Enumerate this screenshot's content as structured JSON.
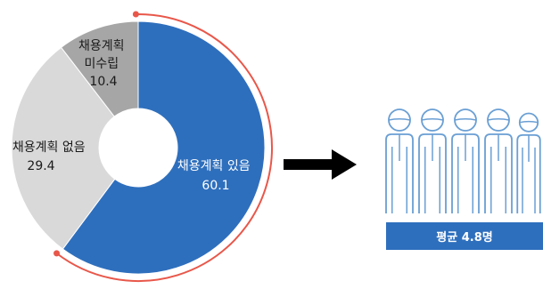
{
  "chart_data": {
    "type": "pie",
    "categories": [
      "채용계획 있음",
      "채용계획 없음",
      "채용계획 미수립"
    ],
    "values": [
      60.1,
      29.4,
      10.4
    ],
    "value_labels": [
      "60.1",
      "29.4",
      "10.4"
    ],
    "label_lines": [
      [
        "채용계획 있음"
      ],
      [
        "채용계획 없음"
      ],
      [
        "채용계획",
        "미수립"
      ]
    ],
    "colors": [
      "#2e6fbd",
      "#d9d9d9",
      "#a6a6a6"
    ],
    "highlight_arc_color": "#e8574a"
  },
  "arrow_icon": "right-arrow",
  "people_icon": "people-icon",
  "average_label": "평균 4.8명",
  "average_box_color": "#2e6fbd",
  "icon_color": "#6a9fd4"
}
